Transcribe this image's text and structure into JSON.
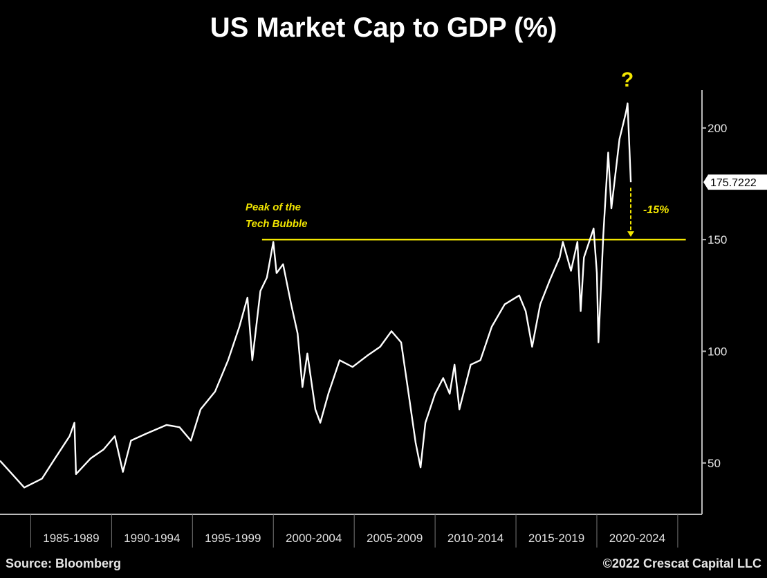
{
  "chart_data": {
    "type": "line",
    "title": "US Market Cap to GDP (%)",
    "xlabel": "",
    "ylabel": "",
    "xlim": [
      1983.1,
      2026.5
    ],
    "ylim": [
      27,
      217
    ],
    "y_axis_side": "right",
    "y_ticks": [
      50,
      100,
      150,
      200
    ],
    "x_tick_years": [
      1985,
      1990,
      1995,
      2000,
      2005,
      2010,
      2015,
      2020,
      2025
    ],
    "x_tick_labels": [
      "1985-1989",
      "1990-1994",
      "1995-1999",
      "2000-2004",
      "2005-2009",
      "2010-2014",
      "2015-2019",
      "2020-2024"
    ],
    "grid": false,
    "legend": "none",
    "line_color": "#ffffff",
    "accent_color": "#f2e600",
    "last_value_label": "175.7222",
    "last_value": 175.7222,
    "series": [
      {
        "x": [
          1983.1,
          1984.6,
          1985.7,
          1986.5,
          1987.4,
          1987.7,
          1987.8,
          1988.7,
          1989.5,
          1990.2,
          1990.7,
          1991.2,
          1992.1,
          1993.4,
          1994.2,
          1994.9,
          1995.5,
          1996.4,
          1997.2,
          1997.9,
          1998.4,
          1998.7,
          1999.2,
          1999.6,
          2000.0,
          2000.2,
          2000.6,
          2001.1,
          2001.5,
          2001.8,
          2002.1,
          2002.6,
          2002.9,
          2003.4,
          2004.1,
          2004.9,
          2005.8,
          2006.6,
          2007.3,
          2007.9,
          2008.3,
          2008.8,
          2009.1,
          2009.4,
          2010.0,
          2010.5,
          2010.9,
          2011.2,
          2011.5,
          2012.2,
          2012.8,
          2013.5,
          2014.3,
          2015.2,
          2015.6,
          2016.0,
          2016.5,
          2017.1,
          2017.7,
          2017.9,
          2018.4,
          2018.8,
          2019.0,
          2019.2,
          2019.8,
          2020.0,
          2020.1,
          2020.4,
          2020.7,
          2020.9,
          2021.4,
          2021.8,
          2021.9,
          2022.1
        ],
        "y": [
          51,
          39,
          43,
          52,
          62,
          68,
          45,
          52,
          56,
          62,
          46,
          60,
          63,
          67,
          66,
          60,
          74,
          82,
          96,
          111,
          124,
          96,
          127,
          133,
          149,
          135,
          139,
          121,
          108,
          84,
          99,
          74,
          68,
          81,
          96,
          93,
          98,
          102,
          109,
          104,
          84,
          59,
          48,
          68,
          81,
          88,
          81,
          94,
          74,
          94,
          96,
          111,
          121,
          125,
          118,
          102,
          121,
          132,
          142,
          149,
          136,
          149,
          118,
          142,
          155,
          135,
          104,
          152,
          189,
          164,
          195,
          207,
          211,
          175.7
        ]
      }
    ],
    "annotations": {
      "reference_line": {
        "value": 150,
        "from_year": 1999.3,
        "to_year": 2025.5,
        "label_line1": "Peak of the",
        "label_line2": "Tech Bubble"
      },
      "drop_arrow": {
        "from_value": 175.7,
        "to_value": 150,
        "label": "-15%"
      },
      "question_mark": "?"
    }
  },
  "footer": {
    "source": "Source: Bloomberg",
    "copyright": "©2022 Crescat Capital LLC"
  }
}
